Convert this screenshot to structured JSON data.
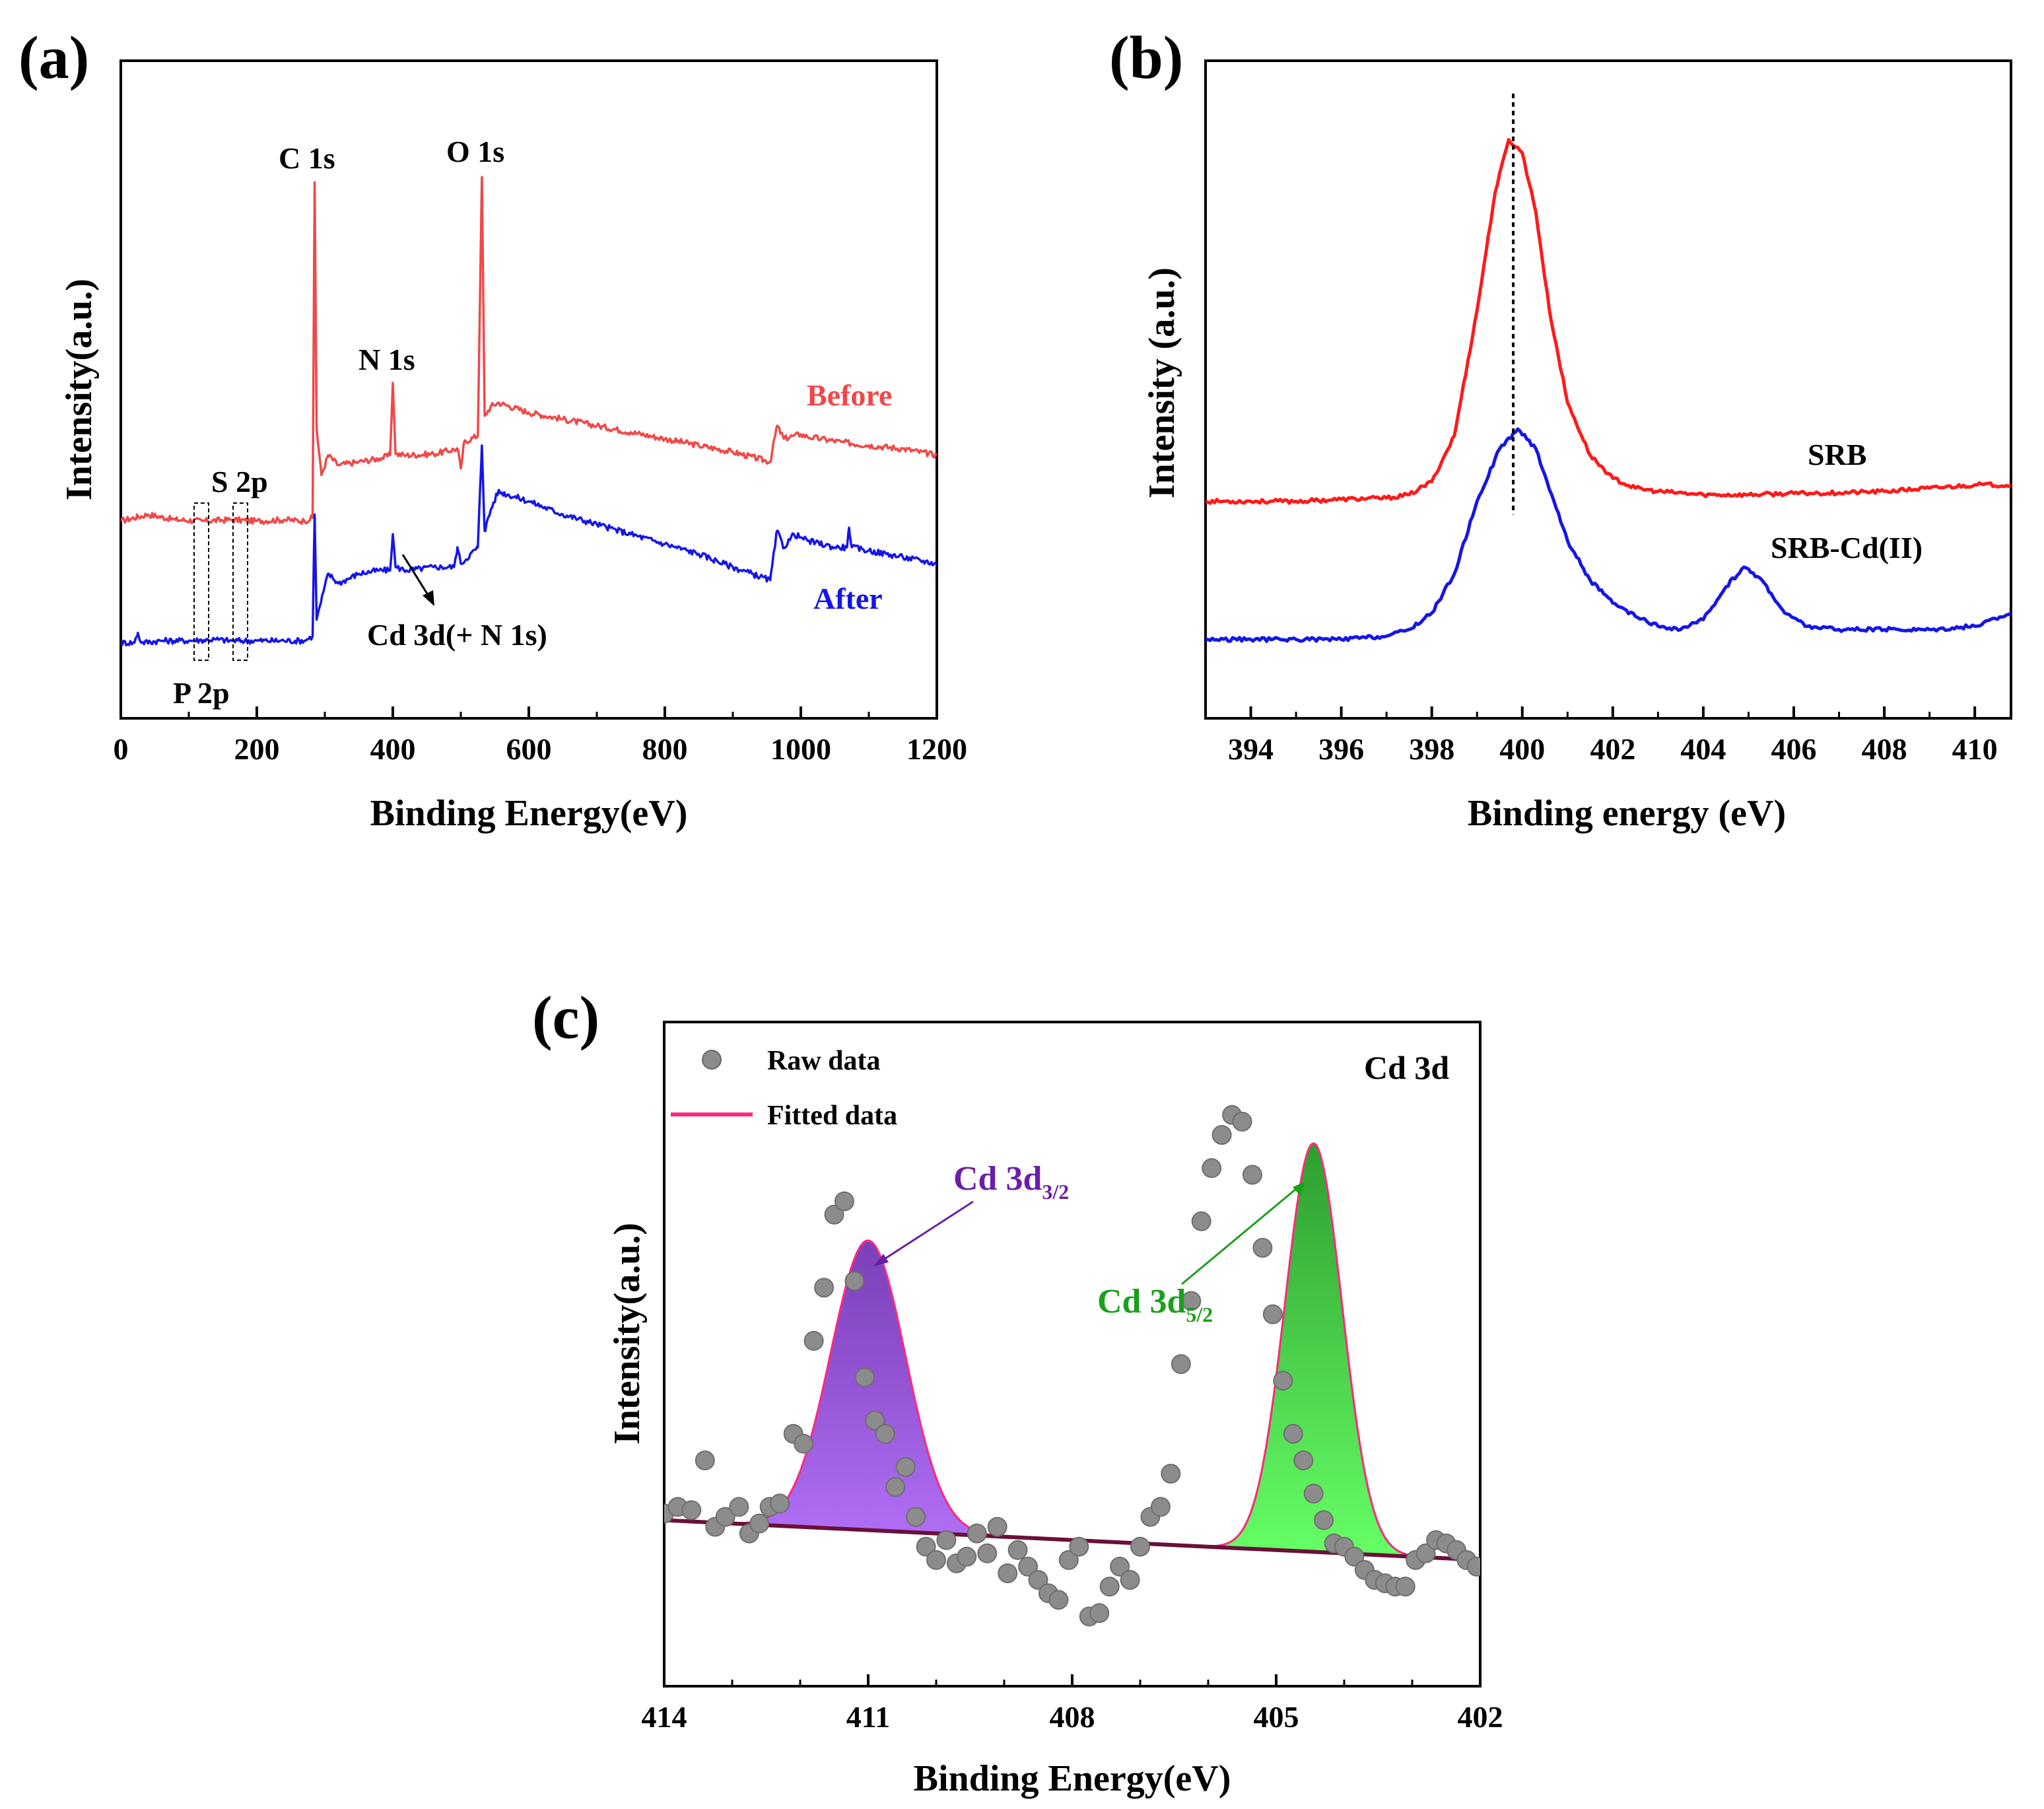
{
  "chart_data": [
    {
      "panel_label": "(a)",
      "type": "line",
      "xlabel": "Binding Energy(eV)",
      "ylabel": "Intensity(a.u.)",
      "xlim": [
        0,
        1200
      ],
      "ylim": [
        0,
        100
      ],
      "xticks": [
        0,
        200,
        400,
        600,
        800,
        1000,
        1200
      ],
      "y_tick_labels_shown": false,
      "series": [
        {
          "name": "Before",
          "color": "#f04848",
          "x": [
            0,
            40,
            80,
            120,
            160,
            200,
            240,
            270,
            282,
            285,
            288,
            295,
            305,
            320,
            350,
            380,
            396,
            400,
            404,
            420,
            460,
            495,
            500,
            505,
            525,
            531,
            535,
            545,
            555,
            600,
            650,
            700,
            750,
            800,
            850,
            900,
            955,
            965,
            975,
            990,
            1000,
            1010,
            1030,
            1060,
            1100,
            1150,
            1200
          ],
          "y": [
            30.0,
            31.0,
            30.2,
            30.0,
            30.2,
            30.0,
            30.2,
            30.0,
            30.5,
            81.5,
            44.0,
            37.0,
            40.0,
            38.5,
            39.0,
            39.5,
            40.0,
            51.0,
            40.2,
            40.0,
            40.2,
            41.0,
            38.0,
            42.0,
            43.0,
            82.3,
            46.0,
            47.5,
            48.0,
            46.5,
            45.5,
            44.5,
            43.5,
            42.5,
            41.5,
            40.5,
            39.0,
            44.5,
            42.5,
            43.0,
            43.2,
            42.8,
            42.5,
            42.0,
            41.5,
            41.0,
            40.0
          ]
        },
        {
          "name": "After",
          "color": "#1515e8",
          "x": [
            0,
            20,
            25,
            30,
            60,
            100,
            140,
            160,
            200,
            240,
            270,
            282,
            285,
            288,
            295,
            305,
            320,
            350,
            380,
            396,
            400,
            404,
            420,
            460,
            490,
            495,
            500,
            525,
            531,
            535,
            545,
            555,
            600,
            650,
            700,
            750,
            800,
            850,
            900,
            955,
            965,
            975,
            990,
            1000,
            1010,
            1050,
            1068,
            1071,
            1075,
            1100,
            1150,
            1200
          ],
          "y": [
            11.5,
            11.5,
            13.0,
            11.5,
            11.8,
            11.8,
            12.0,
            11.8,
            11.8,
            11.8,
            11.8,
            12.5,
            31.0,
            15.0,
            18.0,
            22.0,
            20.5,
            22.0,
            22.5,
            22.5,
            28.0,
            23.0,
            22.5,
            23.0,
            23.0,
            26.0,
            23.5,
            26.0,
            41.5,
            28.5,
            32.0,
            34.5,
            33.0,
            31.0,
            29.5,
            28.0,
            26.5,
            25.0,
            23.0,
            21.0,
            28.5,
            26.0,
            28.0,
            27.5,
            27.0,
            26.0,
            26.0,
            29.0,
            26.0,
            25.5,
            24.5,
            23.5
          ]
        }
      ],
      "annotations": [
        "C 1s",
        "O 1s",
        "N 1s",
        "S 2p",
        "P 2p",
        "Cd 3d(+ N 1s)"
      ],
      "grid": false
    },
    {
      "panel_label": "(b)",
      "type": "line",
      "xlabel": "Binding energy (eV)",
      "ylabel": "Intensity (a.u.)",
      "xlim": [
        393,
        410.8
      ],
      "ylim": [
        0,
        100
      ],
      "xticks": [
        394,
        396,
        398,
        400,
        402,
        404,
        406,
        408,
        410
      ],
      "y_tick_labels_shown": false,
      "reference_line_x": 399.8,
      "series": [
        {
          "name": "SRB",
          "color": "#ff1a1a",
          "x": [
            393,
            394,
            395,
            396,
            397,
            397.5,
            398,
            398.5,
            399,
            399.4,
            399.7,
            400,
            400.3,
            400.6,
            401,
            401.5,
            402,
            402.5,
            403,
            404,
            405,
            406,
            407,
            408,
            409,
            410,
            410.8
          ],
          "y": [
            33,
            33,
            33,
            33.3,
            33.5,
            34,
            36,
            43,
            62,
            80,
            88,
            86,
            77,
            62,
            48,
            40,
            36.5,
            35,
            34.5,
            34,
            34,
            34.2,
            34.3,
            34.5,
            35,
            35.5,
            35.5
          ]
        },
        {
          "name": "SRB-Cd(II)",
          "color": "#1515e8",
          "x": [
            393,
            394,
            395,
            396,
            397,
            397.5,
            398,
            398.5,
            399,
            399.5,
            399.9,
            400.3,
            400.7,
            401,
            401.5,
            402,
            402.5,
            403,
            403.5,
            404,
            404.5,
            404.9,
            405.3,
            405.8,
            406.3,
            407,
            408,
            409,
            410,
            410.8
          ],
          "y": [
            12,
            12,
            12,
            12,
            12.5,
            13.5,
            16,
            22,
            33,
            41,
            44,
            41,
            33,
            27,
            21,
            17.5,
            15.5,
            14,
            13.5,
            15,
            20,
            23,
            21,
            16,
            14,
            13.5,
            13.5,
            13.5,
            14,
            16
          ]
        }
      ],
      "grid": false
    },
    {
      "panel_label": "(c)",
      "type": "scatter",
      "xlabel": "Binding Energy(eV)",
      "ylabel": "Intensity(a.u.)",
      "xlim": [
        414,
        402
      ],
      "x_reversed": true,
      "ylim": [
        0,
        100
      ],
      "xticks": [
        414,
        411,
        408,
        405,
        402
      ],
      "y_tick_labels_shown": false,
      "title_annotation": "Cd 3d",
      "legend": {
        "position": "top-left",
        "entries": [
          "Raw data",
          "Fitted data"
        ]
      },
      "series": [
        {
          "name": "Raw data",
          "color": "#8c8c8c",
          "marker": "circle",
          "x": [
            414.0,
            413.8,
            413.6,
            413.4,
            413.25,
            413.1,
            412.9,
            412.75,
            412.6,
            412.45,
            412.3,
            412.1,
            411.95,
            411.8,
            411.65,
            411.5,
            411.35,
            411.2,
            411.05,
            410.9,
            410.75,
            410.6,
            410.45,
            410.3,
            410.15,
            410.0,
            409.85,
            409.7,
            409.55,
            409.4,
            409.25,
            409.1,
            408.95,
            408.8,
            408.65,
            408.5,
            408.35,
            408.2,
            408.05,
            407.9,
            407.75,
            407.6,
            407.45,
            407.3,
            407.15,
            407.0,
            406.85,
            406.7,
            406.55,
            406.4,
            406.25,
            406.1,
            405.95,
            405.8,
            405.65,
            405.5,
            405.35,
            405.2,
            405.05,
            404.9,
            404.75,
            404.6,
            404.45,
            404.3,
            404.15,
            404.0,
            403.85,
            403.7,
            403.55,
            403.4,
            403.25,
            403.1,
            402.95,
            402.8,
            402.65,
            402.5,
            402.35,
            402.2,
            402.05
          ],
          "y": [
            26,
            27,
            26.5,
            34,
            24,
            25.5,
            27,
            23,
            24.5,
            27,
            27.5,
            38,
            36.5,
            52,
            60,
            71,
            73,
            61,
            46.5,
            40,
            38,
            30,
            33,
            25.5,
            21,
            19,
            22,
            18.5,
            19.5,
            23,
            20,
            24,
            17,
            20.5,
            18,
            16,
            14,
            13,
            19,
            21,
            10.5,
            11,
            15,
            18,
            16,
            21,
            25.5,
            27,
            32,
            48.5,
            58,
            70,
            78,
            83,
            86,
            85,
            77,
            66,
            56,
            46,
            38,
            34,
            29,
            25,
            21.5,
            21,
            19.5,
            17.5,
            16,
            15.5,
            15,
            15,
            19,
            20,
            22,
            21.5,
            20.5,
            19,
            18
          ]
        },
        {
          "name": "Fitted data",
          "color": "#ff2a80",
          "type": "line",
          "x": [
            414,
            413,
            412.5,
            412,
            411.7,
            411.4,
            411.2,
            411.0,
            410.8,
            410.5,
            410.2,
            409.9,
            409.5,
            409,
            408,
            407,
            406.5,
            406,
            405.6,
            405.2,
            404.9,
            404.6,
            404.4,
            404.2,
            404.0,
            403.7,
            403.4,
            403,
            402.5,
            402
          ],
          "y": [
            25,
            24.5,
            24.5,
            30,
            40,
            55,
            64,
            68,
            63,
            50,
            34,
            26,
            23,
            22,
            21.5,
            21.3,
            21.3,
            24.5,
            33,
            52,
            70,
            80,
            82,
            77,
            66,
            46,
            29,
            21,
            19.5,
            19
          ]
        }
      ],
      "baseline": {
        "color": "#6a1038",
        "x": [
          414,
          402
        ],
        "y": [
          25,
          19
        ]
      },
      "peaks": [
        {
          "label": "Cd 3d3/2",
          "label_main": "Cd 3d",
          "label_sub": "3/2",
          "center": 411.0,
          "height": 43.6,
          "sigma": 0.55,
          "fill_color_top": "#7b3fb8",
          "fill_color_bottom": "#b06ef5",
          "label_color": "#6a1fa8"
        },
        {
          "label": "Cd 3d5/2",
          "label_main": "Cd 3d",
          "label_sub": "5/2",
          "center": 404.45,
          "height": 61.5,
          "sigma": 0.42,
          "fill_color_top": "#2e9e2e",
          "fill_color_bottom": "#66ff66",
          "label_color": "#1aa01a"
        }
      ],
      "grid": false
    }
  ],
  "labels_a": {
    "c1s": "C 1s",
    "o1s": "O 1s",
    "n1s": "N 1s",
    "s2p": "S 2p",
    "p2p": "P 2p",
    "cd3d": "Cd 3d(+ N 1s)",
    "before": "Before",
    "after": "After"
  },
  "labels_b": {
    "srb": "SRB",
    "srbcd": "SRB-Cd(II)"
  }
}
